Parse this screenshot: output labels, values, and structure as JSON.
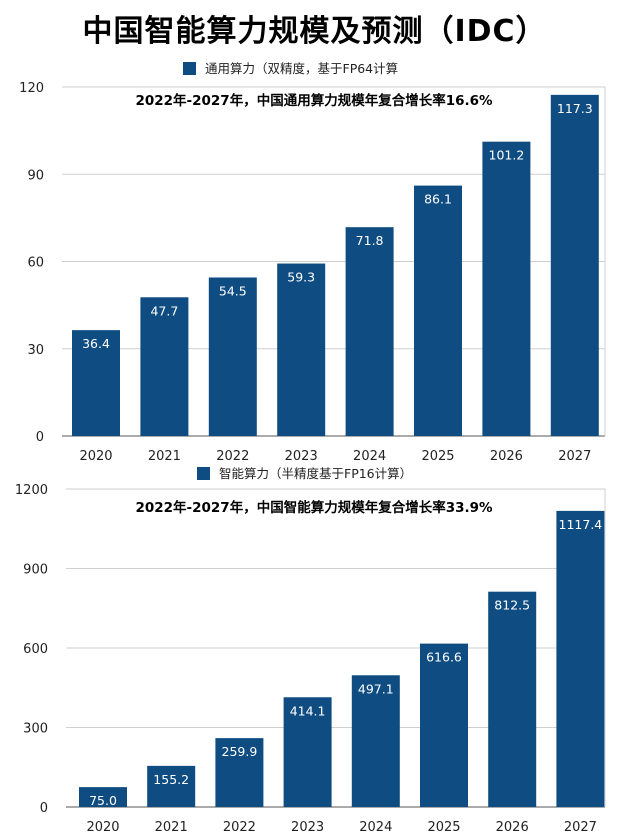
{
  "title": "中国智能算力规模及预测（IDC）",
  "colors": {
    "bar": "#0f4c81",
    "grid": "#cfcfcf",
    "axis": "#555555"
  },
  "chart_data": [
    {
      "type": "bar",
      "legend": "通用算力（双精度，基于FP64计算",
      "annotation": "2022年-2027年，中国通用算力规模年复合增长率16.6%",
      "categories": [
        "2020",
        "2021",
        "2022",
        "2023",
        "2024",
        "2025",
        "2026",
        "2027"
      ],
      "values": [
        36.4,
        47.7,
        54.5,
        59.3,
        71.8,
        86.1,
        101.2,
        117.3
      ],
      "value_labels": [
        "36.4",
        "47.7",
        "54.5",
        "59.3",
        "71.8",
        "86.1",
        "101.2",
        "117.3"
      ],
      "ylim": [
        0,
        120
      ],
      "yticks": [
        "0",
        "30",
        "60",
        "90",
        "120"
      ],
      "grid": true
    },
    {
      "type": "bar",
      "legend": "智能算力（半精度基于FP16计算）",
      "annotation": "2022年-2027年，中国智能算力规模年复合增长率33.9%",
      "categories": [
        "2020",
        "2021",
        "2022",
        "2023",
        "2024",
        "2025",
        "2026",
        "2027"
      ],
      "values": [
        75.0,
        155.2,
        259.9,
        414.1,
        497.1,
        616.6,
        812.5,
        1117.4
      ],
      "value_labels": [
        "75.0",
        "155.2",
        "259.9",
        "414.1",
        "497.1",
        "616.6",
        "812.5",
        "1117.4"
      ],
      "ylim": [
        0,
        1200
      ],
      "yticks": [
        "0",
        "300",
        "600",
        "900",
        "1200"
      ],
      "grid": true
    }
  ]
}
